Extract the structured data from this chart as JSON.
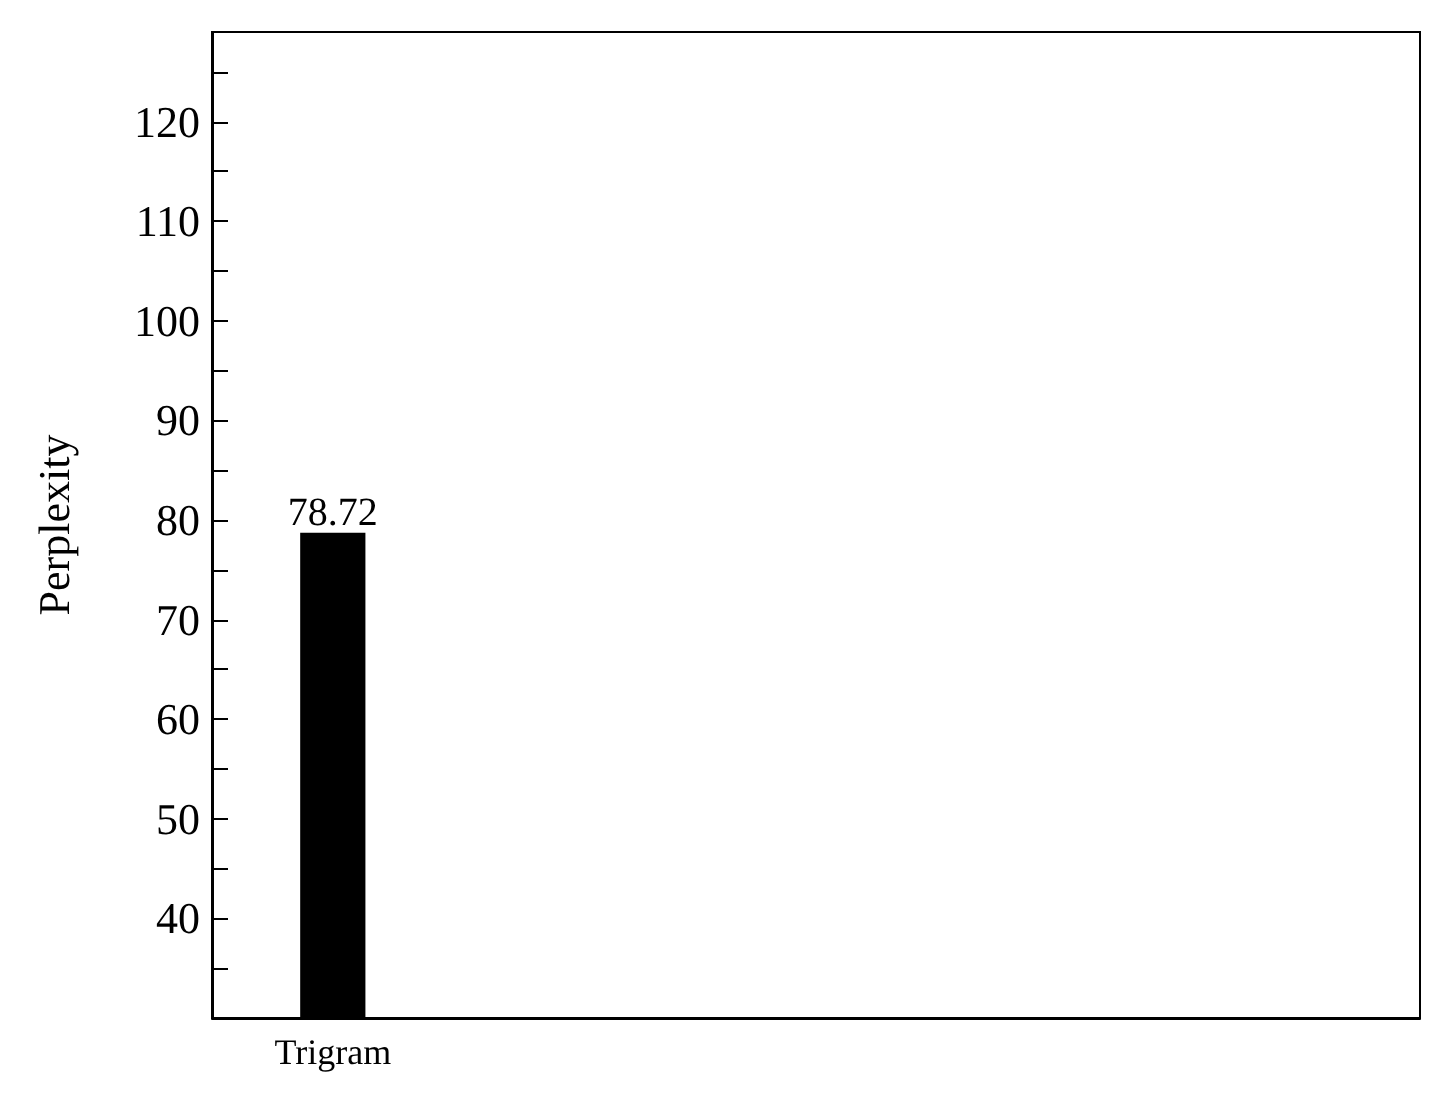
{
  "chart_data": {
    "type": "bar",
    "ylabel": "Perplexity",
    "categories": [
      "Trigram",
      null,
      null,
      null,
      null
    ],
    "values": [
      78.72,
      null,
      null,
      null,
      null
    ],
    "color": "#000000",
    "data_labels": true,
    "grid": false,
    "ylim": [
      30,
      129
    ],
    "yticks": [
      {
        "value": 35,
        "label": null
      },
      40,
      {
        "value": 45,
        "label": null
      },
      50,
      {
        "value": 55,
        "label": null
      },
      60,
      {
        "value": 65,
        "label": null
      },
      70,
      {
        "value": 75,
        "label": null
      },
      80,
      {
        "value": 85,
        "label": null
      },
      90,
      {
        "value": 95,
        "label": null
      },
      100,
      {
        "value": 105,
        "label": null
      },
      110,
      {
        "value": 115,
        "label": null
      },
      120,
      {
        "value": 125,
        "label": null
      }
    ]
  }
}
